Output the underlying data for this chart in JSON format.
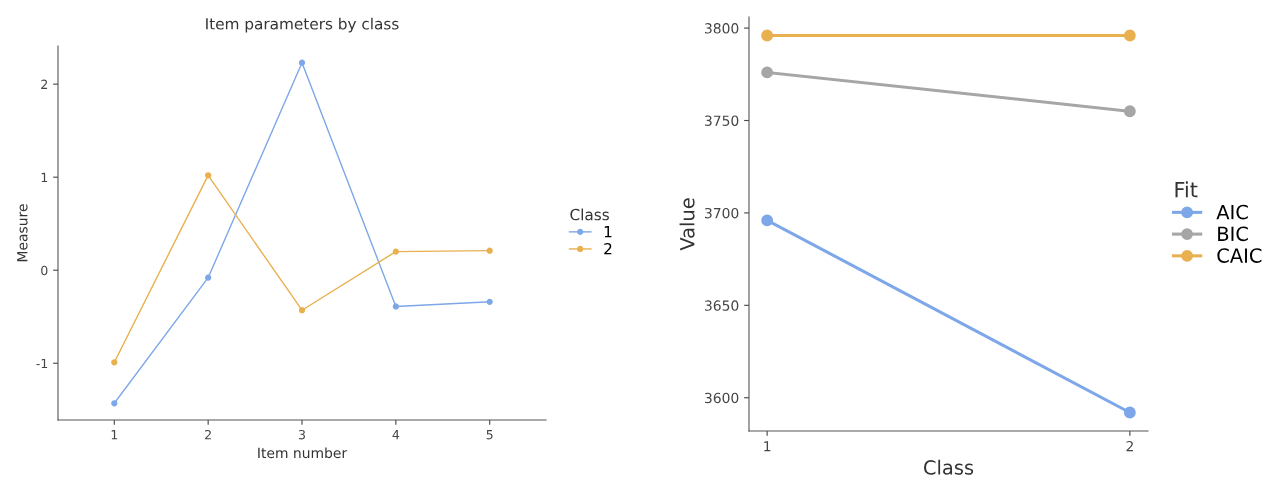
{
  "chart_data": [
    {
      "type": "line",
      "title": "Item parameters by class",
      "xlabel": "Item number",
      "ylabel": "Measure",
      "legend_title": "Class",
      "legend": "right",
      "marker": "circle",
      "grid": false,
      "x": [
        1,
        2,
        3,
        4,
        5
      ],
      "xlim": [
        0.4,
        5.6
      ],
      "xticks": [
        1,
        2,
        3,
        4,
        5
      ],
      "ylim": [
        -1.61,
        2.41
      ],
      "yticks": [
        -1,
        0,
        1,
        2
      ],
      "series": [
        {
          "name": "1",
          "color": "#7da7e8",
          "values": [
            -1.43,
            -0.08,
            2.23,
            -0.39,
            -0.34
          ]
        },
        {
          "name": "2",
          "color": "#e8b04e",
          "values": [
            -0.99,
            1.02,
            -0.43,
            0.2,
            0.21
          ]
        }
      ]
    },
    {
      "type": "line",
      "xlabel": "Class",
      "ylabel": "Value",
      "legend_title": "Fit",
      "legend": "right",
      "marker": "circle",
      "grid": false,
      "x": [
        1,
        2
      ],
      "xlim": [
        0.95,
        2.05
      ],
      "xticks": [
        1,
        2
      ],
      "ylim": [
        3582,
        3806
      ],
      "yticks": [
        3600,
        3650,
        3700,
        3750,
        3800
      ],
      "series": [
        {
          "name": "AIC",
          "color": "#7da7e8",
          "values": [
            3696,
            3592
          ]
        },
        {
          "name": "BIC",
          "color": "#a6a6a6",
          "values": [
            3776,
            3755
          ]
        },
        {
          "name": "CAIC",
          "color": "#e8b04e",
          "values": [
            3796,
            3796
          ]
        }
      ]
    }
  ]
}
